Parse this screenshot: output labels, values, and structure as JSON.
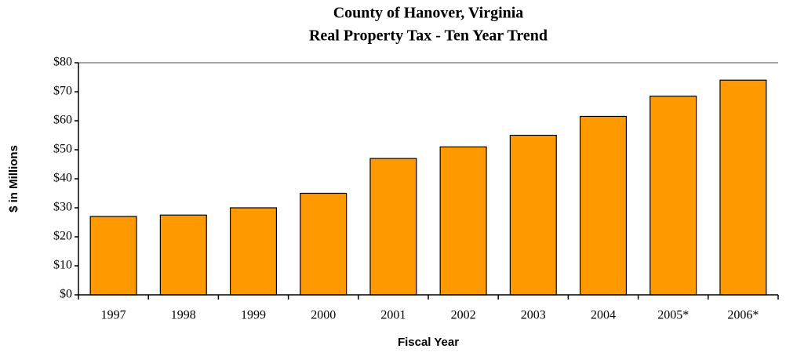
{
  "chart_data": {
    "type": "bar",
    "title": "County of Hanover, Virginia",
    "subtitle": "Real Property Tax - Ten Year Trend",
    "x_label": "Fiscal Year",
    "y_label": "$ in Millions",
    "categories": [
      "1997",
      "1998",
      "1999",
      "2000",
      "2001",
      "2002",
      "2003",
      "2004",
      "2005*",
      "2006*"
    ],
    "values": [
      27,
      27.5,
      30,
      35,
      47,
      51,
      55,
      61.5,
      68.5,
      74
    ],
    "color": "#ff9900",
    "ylim": [
      0,
      80
    ],
    "yticks": [
      {
        "value": 0,
        "label": "$0"
      },
      {
        "value": 10,
        "label": "$10"
      },
      {
        "value": 20,
        "label": "$20"
      },
      {
        "value": 30,
        "label": "$30"
      },
      {
        "value": 40,
        "label": "$40"
      },
      {
        "value": 50,
        "label": "$50"
      },
      {
        "value": 60,
        "label": "$60"
      },
      {
        "value": 70,
        "label": "$70"
      },
      {
        "value": 80,
        "label": "$80"
      }
    ],
    "grid": false
  }
}
